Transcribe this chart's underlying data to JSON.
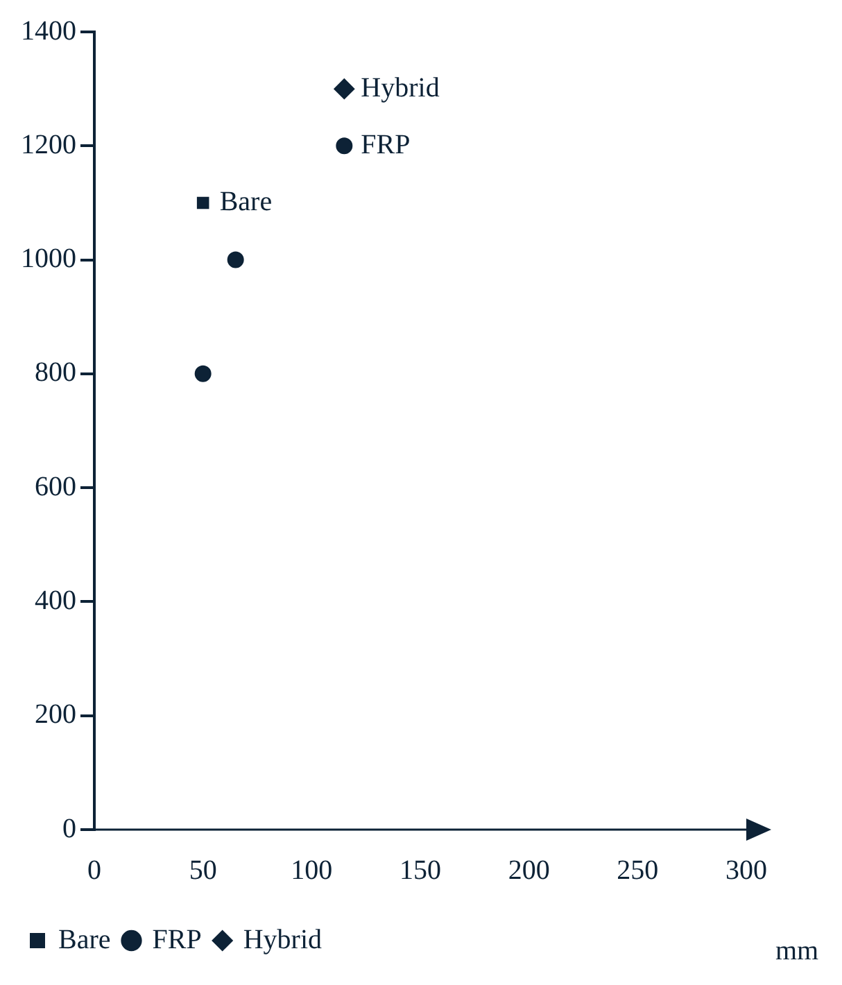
{
  "chart_data": {
    "type": "scatter",
    "xlabel": "mm",
    "xlim": [
      0,
      300
    ],
    "xticks": [
      0,
      50,
      100,
      150,
      200,
      250,
      300
    ],
    "ylim": [
      0,
      1400
    ],
    "yticks": [
      0,
      200,
      400,
      600,
      800,
      1000,
      1200,
      1400
    ],
    "grid": false,
    "legend": "bottom",
    "series": [
      {
        "color": "#0d2236",
        "marker": "circle",
        "x": [
          50,
          65
        ],
        "values": [
          800,
          1000
        ]
      },
      {
        "name": "Bare",
        "color": "#0d2236",
        "marker": "square",
        "x": [
          50
        ],
        "values": [
          1100
        ]
      },
      {
        "name": "FRP",
        "color": "#0d2236",
        "marker": "circle",
        "x": [
          115
        ],
        "values": [
          1200
        ]
      },
      {
        "name": "Hybrid",
        "color": "#0d2236",
        "marker": "diamond",
        "x": [
          115
        ],
        "values": [
          1300
        ]
      }
    ]
  }
}
